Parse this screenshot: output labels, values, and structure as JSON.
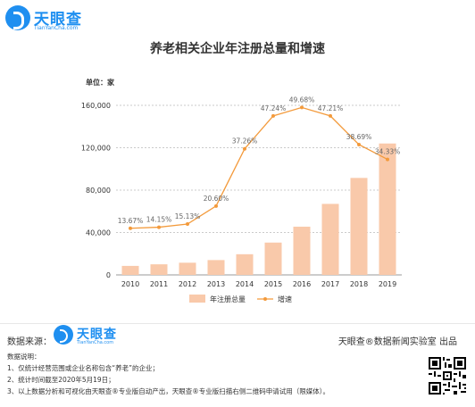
{
  "brand": {
    "name": "天眼查",
    "domain": "TianYanCha.com"
  },
  "chart_data": {
    "type": "bar",
    "title": "养老相关企业年注册总量和增速",
    "unit_label": "单位：家",
    "categories": [
      "2010",
      "2011",
      "2012",
      "2013",
      "2014",
      "2015",
      "2016",
      "2017",
      "2018",
      "2019"
    ],
    "ylim": [
      0,
      160000
    ],
    "yticks": [
      "0",
      "40,000",
      "80,000",
      "120,000",
      "160,000"
    ],
    "ytick_values": [
      0,
      40000,
      80000,
      120000,
      160000
    ],
    "grid": true,
    "legend_position": "bottom",
    "series": [
      {
        "name": "年注册总量",
        "kind": "bar",
        "color": "#f9c9aa",
        "values": [
          8500,
          10000,
          11500,
          14000,
          19500,
          30500,
          45500,
          67000,
          91500,
          124000
        ]
      },
      {
        "name": "增速",
        "kind": "line",
        "color": "#f39a3b",
        "values": [
          44000,
          45000,
          48000,
          65000,
          119000,
          150000,
          158000,
          150000,
          123000,
          109000
        ],
        "labels": [
          "13.67%",
          "14.15%",
          "15.13%",
          "20.60%",
          "37.26%",
          "47.24%",
          "49.68%",
          "47.21%",
          "38.69%",
          "34.33%"
        ]
      }
    ]
  },
  "footer": {
    "source_label": "数据来源：",
    "credit": "天眼查®数据新闻实验室 出品",
    "notes_title": "数据说明：",
    "notes": [
      "1、仅统计经营范围或企业名称包含“养老”的企业；",
      "2、统计时间截至2020年5月19日；",
      "3、以上数据分析和可视化由天眼查®专业版自动产出，天眼查®专业版扫描右侧二维码申请试用（限媒体）。"
    ]
  }
}
